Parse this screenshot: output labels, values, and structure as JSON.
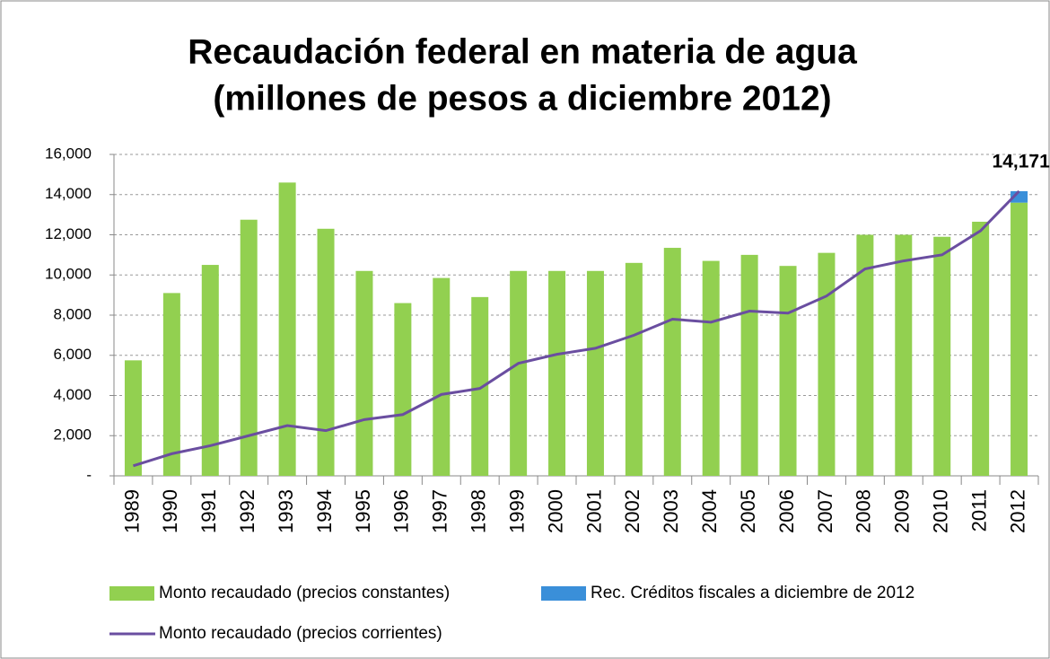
{
  "chart_data": {
    "type": "bar",
    "title": [
      "Recaudación federal en materia de agua",
      "(millones de pesos a diciembre 2012)"
    ],
    "categories": [
      "1989",
      "1990",
      "1991",
      "1992",
      "1993",
      "1994",
      "1995",
      "1996",
      "1997",
      "1998",
      "1999",
      "2000",
      "2001",
      "2002",
      "2003",
      "2004",
      "2005",
      "2006",
      "2007",
      "2008",
      "2009",
      "2010",
      "2011",
      "2012"
    ],
    "series": [
      {
        "name": "Monto recaudado (precios constantes)",
        "color": "#92d050",
        "kind": "bar",
        "values": [
          5750,
          9100,
          10500,
          12750,
          14600,
          12300,
          10200,
          8600,
          9850,
          8900,
          10200,
          10200,
          10200,
          10600,
          11350,
          10700,
          11000,
          10450,
          11100,
          12000,
          12000,
          11900,
          12650,
          13600
        ]
      },
      {
        "name": "Rec. Créditos fiscales a diciembre de 2012",
        "color": "#3a8fd9",
        "kind": "stack",
        "values": [
          null,
          null,
          null,
          null,
          null,
          null,
          null,
          null,
          null,
          null,
          null,
          null,
          null,
          null,
          null,
          null,
          null,
          null,
          null,
          null,
          null,
          null,
          null,
          571
        ]
      },
      {
        "name": "Monto recaudado (precios corrientes)",
        "color": "#6a4ea0",
        "kind": "line",
        "values": [
          500,
          1100,
          1500,
          2000,
          2500,
          2250,
          2800,
          3050,
          4050,
          4350,
          5600,
          6050,
          6350,
          7000,
          7800,
          7650,
          8200,
          8100,
          8950,
          10300,
          10700,
          11000,
          12200,
          14171
        ]
      }
    ],
    "annotations": [
      {
        "text": "14,171",
        "category": "2012",
        "value": 14171
      }
    ],
    "ylim": [
      0,
      16000
    ],
    "yticks": [
      {
        "value": 0,
        "label": "-"
      },
      {
        "value": 2000,
        "label": "2,000"
      },
      {
        "value": 4000,
        "label": "4,000"
      },
      {
        "value": 6000,
        "label": "6,000"
      },
      {
        "value": 8000,
        "label": "8,000"
      },
      {
        "value": 10000,
        "label": "10,000"
      },
      {
        "value": 12000,
        "label": "12,000"
      },
      {
        "value": 14000,
        "label": "14,000"
      },
      {
        "value": 16000,
        "label": "16,000"
      }
    ],
    "grid": true
  }
}
